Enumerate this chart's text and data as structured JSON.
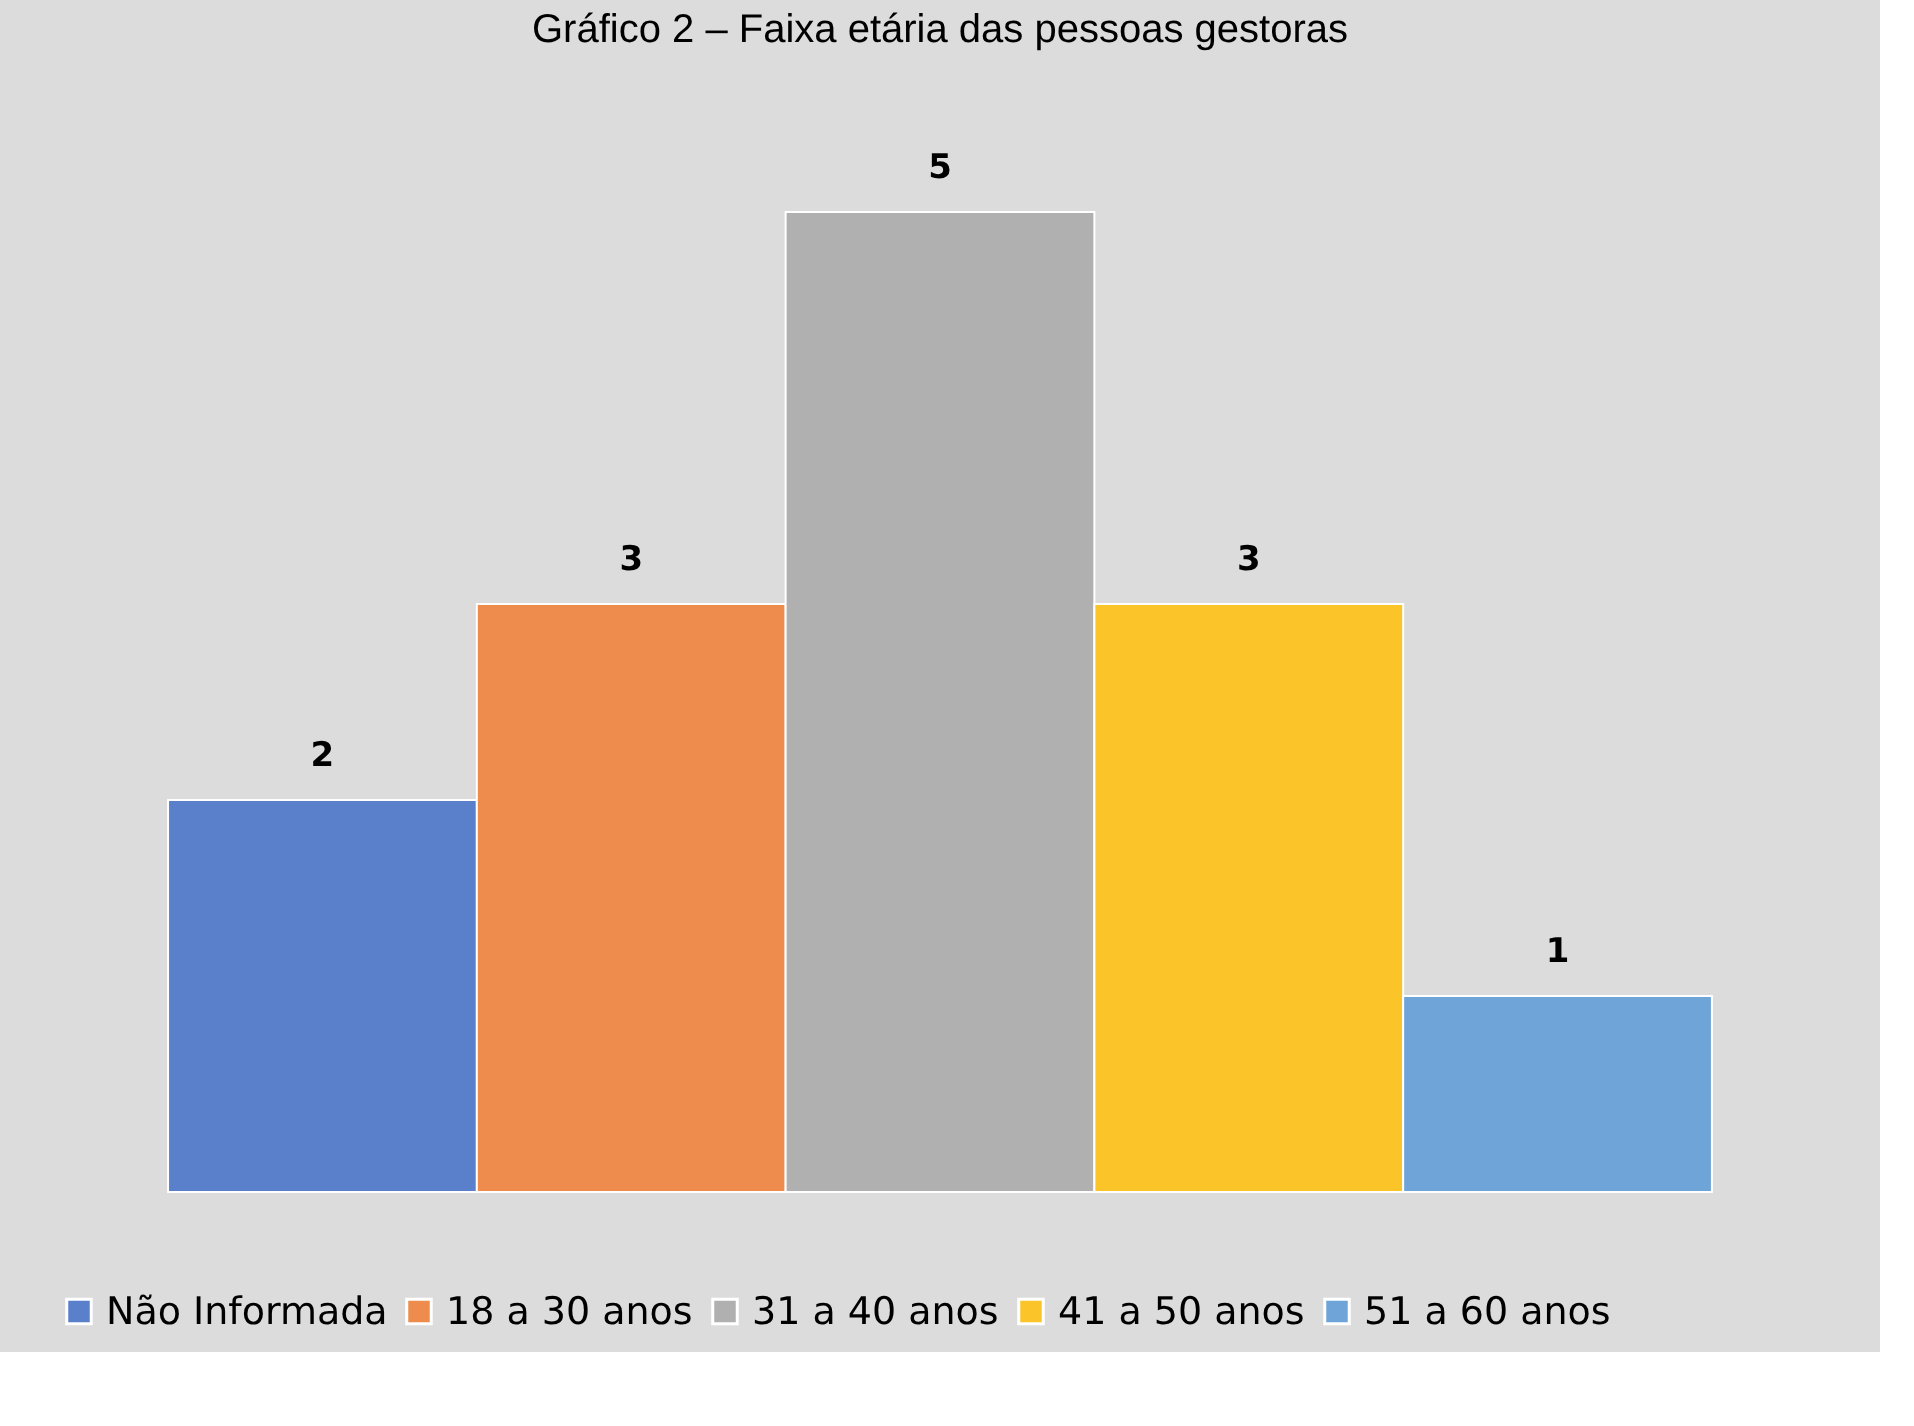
{
  "chart_data": {
    "type": "bar",
    "title": "Gráfico 2 – Faixa etária das pessoas gestoras",
    "categories": [
      null
    ],
    "series": [
      {
        "name": "Não Informada",
        "color": "#5a7fcb",
        "values": [
          2
        ]
      },
      {
        "name": "18 a 30 anos",
        "color": "#ed8c4d",
        "values": [
          3
        ]
      },
      {
        "name": "31 a 40 anos",
        "color": "#b0b0b0",
        "values": [
          5
        ]
      },
      {
        "name": "41 a 50 anos",
        "color": "#fbc52a",
        "values": [
          3
        ]
      },
      {
        "name": "51 a 60 anos",
        "color": "#6fa4d8",
        "values": [
          1
        ]
      }
    ],
    "data_labels": true,
    "legend": "bottom",
    "tick_labels": false
  }
}
